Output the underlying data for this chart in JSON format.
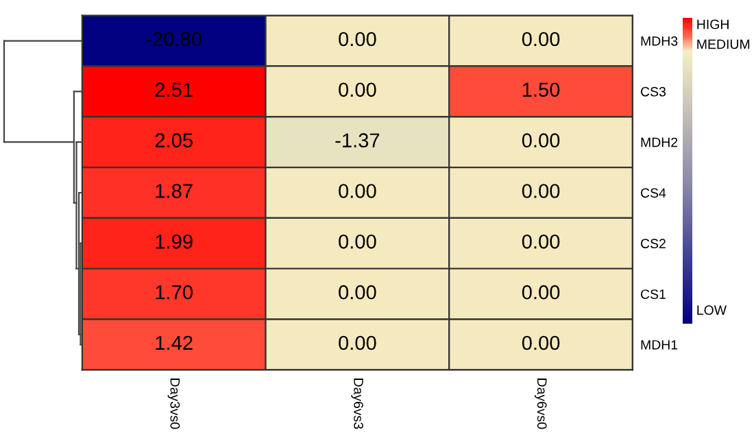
{
  "chart_data": {
    "type": "heatmap",
    "categories": [
      "Day3vs0",
      "Day6vs3",
      "Day6vs0"
    ],
    "y_categories": [
      "MDH3",
      "CS3",
      "MDH2",
      "CS4",
      "CS2",
      "CS1",
      "MDH1"
    ],
    "cells": [
      [
        -20.8,
        0.0,
        0.0
      ],
      [
        2.51,
        0.0,
        1.5
      ],
      [
        2.05,
        -1.37,
        0.0
      ],
      [
        1.87,
        0.0,
        0.0
      ],
      [
        1.99,
        0.0,
        0.0
      ],
      [
        1.7,
        0.0,
        0.0
      ],
      [
        1.42,
        0.0,
        0.0
      ]
    ],
    "cell_labels": [
      [
        "-20.80",
        "0.00",
        "0.00"
      ],
      [
        "2.51",
        "0.00",
        "1.50"
      ],
      [
        "2.05",
        "-1.37",
        "0.00"
      ],
      [
        "1.87",
        "0.00",
        "0.00"
      ],
      [
        "1.99",
        "0.00",
        "0.00"
      ],
      [
        "1.70",
        "0.00",
        "0.00"
      ],
      [
        "1.42",
        "0.00",
        "0.00"
      ]
    ],
    "annotations": [
      "HIGH",
      "MEDIUM",
      "LOW"
    ]
  }
}
